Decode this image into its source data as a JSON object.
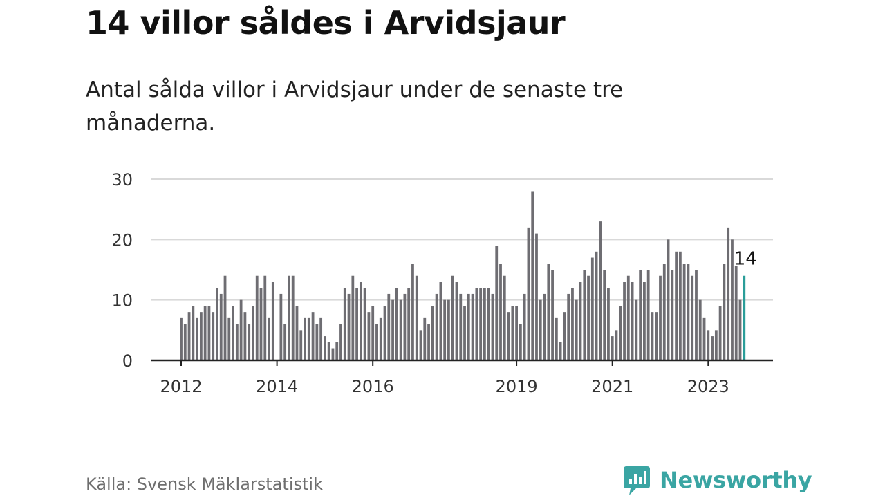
{
  "title": "14 villor såldes i Arvidsjaur",
  "subtitle": "Antal sålda villor i Arvidsjaur under de senaste tre månaderna.",
  "source": "Källa: Svensk Mäklarstatistik",
  "brand": {
    "name": "Newsworthy",
    "icon": "newsworthy-logo-icon"
  },
  "colors": {
    "bar": "#6e6d72",
    "highlight": "#2a9d99",
    "grid": "#d9d9d9",
    "axis": "#222222",
    "brand": "#3aa5a3"
  },
  "chart_data": {
    "type": "bar",
    "title": "",
    "xlabel": "",
    "ylabel": "",
    "ylim": [
      0,
      30
    ],
    "yticks": [
      0,
      10,
      20,
      30
    ],
    "grid": true,
    "xticks": [
      {
        "label": "2012",
        "index": 0
      },
      {
        "label": "2014",
        "index": 24
      },
      {
        "label": "2016",
        "index": 48
      },
      {
        "label": "2019",
        "index": 84
      },
      {
        "label": "2021",
        "index": 108
      },
      {
        "label": "2023",
        "index": 132
      }
    ],
    "highlight": {
      "index": 141,
      "label": "14"
    },
    "values": [
      7,
      6,
      8,
      9,
      7,
      8,
      9,
      9,
      8,
      12,
      11,
      14,
      7,
      9,
      6,
      10,
      8,
      6,
      9,
      14,
      12,
      14,
      7,
      13,
      0,
      11,
      6,
      14,
      14,
      9,
      5,
      7,
      7,
      8,
      6,
      7,
      4,
      3,
      2,
      3,
      6,
      12,
      11,
      14,
      12,
      13,
      12,
      8,
      9,
      6,
      7,
      9,
      11,
      10,
      12,
      10,
      11,
      12,
      16,
      14,
      5,
      7,
      6,
      9,
      11,
      13,
      10,
      10,
      14,
      13,
      11,
      9,
      11,
      11,
      12,
      12,
      12,
      12,
      11,
      19,
      16,
      14,
      8,
      9,
      9,
      6,
      11,
      22,
      28,
      21,
      10,
      11,
      16,
      15,
      7,
      3,
      8,
      11,
      12,
      10,
      13,
      15,
      14,
      17,
      18,
      23,
      15,
      12,
      4,
      5,
      9,
      13,
      14,
      13,
      10,
      15,
      13,
      15,
      8,
      8,
      14,
      16,
      20,
      15,
      18,
      18,
      16,
      16,
      14,
      15,
      10,
      7,
      5,
      4,
      5,
      9,
      16,
      22,
      20,
      16,
      10,
      14
    ]
  }
}
